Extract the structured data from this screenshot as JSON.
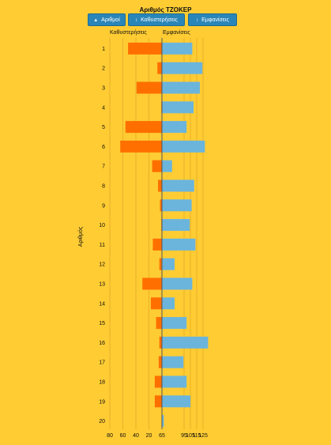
{
  "title": "Αριθμός ΤΖΟΚΕΡ",
  "buttons": [
    {
      "label": "Αριθμοί",
      "icon": "sort-up-icon",
      "arrow": "▲"
    },
    {
      "label": "Καθυστερήσεις",
      "icon": "sort-icon",
      "arrow": "↕"
    },
    {
      "label": "Εμφανίσεις",
      "icon": "sort-icon",
      "arrow": "↕"
    }
  ],
  "headers": {
    "left": "Καθυστερήσεις",
    "right": "Εμφανίσεις"
  },
  "ylabel": "Αριθμός",
  "colors": {
    "delay": "#FF6F00",
    "appear": "#6BB5DC",
    "background": "#FFCC33",
    "button": "#2A86B8"
  },
  "chart_data": {
    "type": "bar",
    "categories": [
      "1",
      "2",
      "3",
      "4",
      "5",
      "6",
      "7",
      "8",
      "9",
      "10",
      "11",
      "12",
      "13",
      "14",
      "15",
      "16",
      "17",
      "18",
      "19",
      "20"
    ],
    "series": [
      {
        "name": "Καθυστερήσεις",
        "values": [
          52,
          7,
          39,
          1,
          56,
          64,
          15,
          6,
          3,
          1,
          14,
          4,
          30,
          17,
          9,
          4,
          5,
          11,
          11,
          0
        ]
      },
      {
        "name": "Εμφανίσεις",
        "values": [
          113,
          129,
          125,
          115,
          104,
          133,
          81,
          116,
          112,
          109,
          118,
          85,
          113,
          85,
          104,
          138,
          99,
          104,
          110,
          68
        ]
      }
    ],
    "left_ticks": [
      "80",
      "60",
      "40",
      "20"
    ],
    "right_ticks": [
      "65",
      "95",
      "105",
      "115",
      "125"
    ],
    "xlim_left": [
      0,
      80
    ],
    "xlim_right": [
      65,
      135
    ]
  }
}
